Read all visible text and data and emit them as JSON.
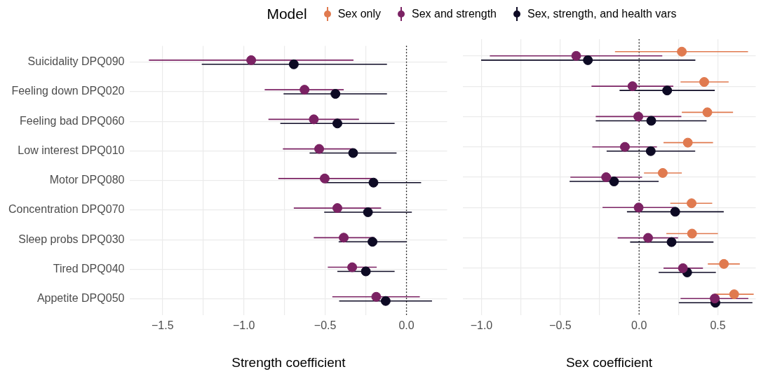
{
  "chart_data": [
    {
      "type": "scatter",
      "orientation": "horizontal",
      "xlabel": "Strength coefficient",
      "marker": "circle",
      "grid": true,
      "legend": "top",
      "categories": [
        "Suicidality DPQ090",
        "Feeling down DPQ020",
        "Feeling bad DPQ060",
        "Low interest DPQ010",
        "Motor DPQ080",
        "Concentration DPQ070",
        "Sleep probs DPQ030",
        "Tired DPQ040",
        "Appetite DPQ050"
      ],
      "xlim": [
        -1.7,
        0.25
      ],
      "xticks": [
        {
          "value": -1.5,
          "label": "−1.5"
        },
        {
          "value": -1.25,
          "label": null
        },
        {
          "value": -1.0,
          "label": "−1.0"
        },
        {
          "value": -0.75,
          "label": null
        },
        {
          "value": -0.5,
          "label": "−0.5"
        },
        {
          "value": -0.25,
          "label": null
        },
        {
          "value": 0,
          "label": "0.0"
        }
      ],
      "ref_lines": [
        {
          "axis": "x",
          "value": 0,
          "line_style": "dotted",
          "color": "#000000"
        }
      ],
      "series": [
        {
          "name": "Sex and strength",
          "color": "#7b2263",
          "values": [
            -0.955,
            -0.627,
            -0.57,
            -0.537,
            -0.503,
            -0.425,
            -0.386,
            -0.334,
            -0.186
          ],
          "errors": [
            [
              -1.584,
              -0.326
            ],
            [
              -0.872,
              -0.386
            ],
            [
              -0.849,
              -0.292
            ],
            [
              -0.76,
              -0.33
            ],
            [
              -0.788,
              -0.214
            ],
            [
              -0.693,
              -0.156
            ],
            [
              -0.57,
              -0.198
            ],
            [
              -0.484,
              -0.183
            ],
            [
              -0.456,
              0.082
            ]
          ]
        },
        {
          "name": "Sex, strength, and health vars",
          "color": "#0d0a24",
          "values": [
            -0.693,
            -0.437,
            -0.425,
            -0.328,
            -0.203,
            -0.237,
            -0.209,
            -0.25,
            -0.128
          ],
          "errors": [
            [
              -1.259,
              -0.12
            ],
            [
              -0.756,
              -0.12
            ],
            [
              -0.776,
              -0.073
            ],
            [
              -0.596,
              -0.061
            ],
            [
              -0.498,
              0.09
            ],
            [
              -0.506,
              0.033
            ],
            [
              -0.417,
              0.0
            ],
            [
              -0.425,
              -0.073
            ],
            [
              -0.414,
              0.157
            ]
          ]
        }
      ]
    },
    {
      "type": "scatter",
      "orientation": "horizontal",
      "xlabel": "Sex coefficient",
      "marker": "circle",
      "grid": true,
      "legend": "top",
      "legend_title": "Model",
      "categories": [
        null,
        null,
        null,
        null,
        null,
        null,
        null,
        null,
        null
      ],
      "xlim": [
        -1.12,
        0.74
      ],
      "xticks": [
        {
          "value": -1.0,
          "label": "−1.0"
        },
        {
          "value": -0.75,
          "label": null
        },
        {
          "value": -0.5,
          "label": "−0.5"
        },
        {
          "value": -0.25,
          "label": null
        },
        {
          "value": 0,
          "label": "0.0"
        },
        {
          "value": 0.25,
          "label": null
        },
        {
          "value": 0.5,
          "label": "0.5"
        }
      ],
      "ref_lines": [
        {
          "axis": "x",
          "value": 0,
          "line_style": "dotted",
          "color": "#000000"
        }
      ],
      "series": [
        {
          "name": "Sex only",
          "color": "#e07a4f",
          "values": [
            0.271,
            0.413,
            0.433,
            0.309,
            0.15,
            0.333,
            0.336,
            0.538,
            0.603
          ],
          "errors": [
            [
              -0.153,
              0.691
            ],
            [
              0.263,
              0.568
            ],
            [
              0.271,
              0.596
            ],
            [
              0.155,
              0.469
            ],
            [
              0.031,
              0.271
            ],
            [
              0.198,
              0.464
            ],
            [
              0.173,
              0.5
            ],
            [
              0.436,
              0.639
            ],
            [
              0.48,
              0.727
            ]
          ]
        },
        {
          "name": "Sex and strength",
          "color": "#7b2263",
          "values": [
            -0.399,
            -0.042,
            -0.005,
            -0.09,
            -0.209,
            -0.003,
            0.057,
            0.278,
            0.48
          ],
          "errors": [
            [
              -0.947,
              0.147
            ],
            [
              -0.302,
              0.217
            ],
            [
              -0.275,
              0.268
            ],
            [
              -0.297,
              0.113
            ],
            [
              -0.436,
              0.019
            ],
            [
              -0.232,
              0.224
            ],
            [
              -0.136,
              0.247
            ],
            [
              0.155,
              0.405
            ],
            [
              0.263,
              0.693
            ]
          ]
        },
        {
          "name": "Sex, strength, and health vars",
          "color": "#0d0a24",
          "values": [
            -0.325,
            0.178,
            0.077,
            0.074,
            -0.159,
            0.229,
            0.206,
            0.305,
            0.484
          ],
          "errors": [
            [
              -1.002,
              0.357
            ],
            [
              -0.124,
              0.48
            ],
            [
              -0.275,
              0.428
            ],
            [
              -0.206,
              0.356
            ],
            [
              -0.441,
              0.124
            ],
            [
              -0.077,
              0.537
            ],
            [
              -0.057,
              0.472
            ],
            [
              0.124,
              0.487
            ],
            [
              0.252,
              0.719
            ]
          ]
        }
      ]
    }
  ]
}
